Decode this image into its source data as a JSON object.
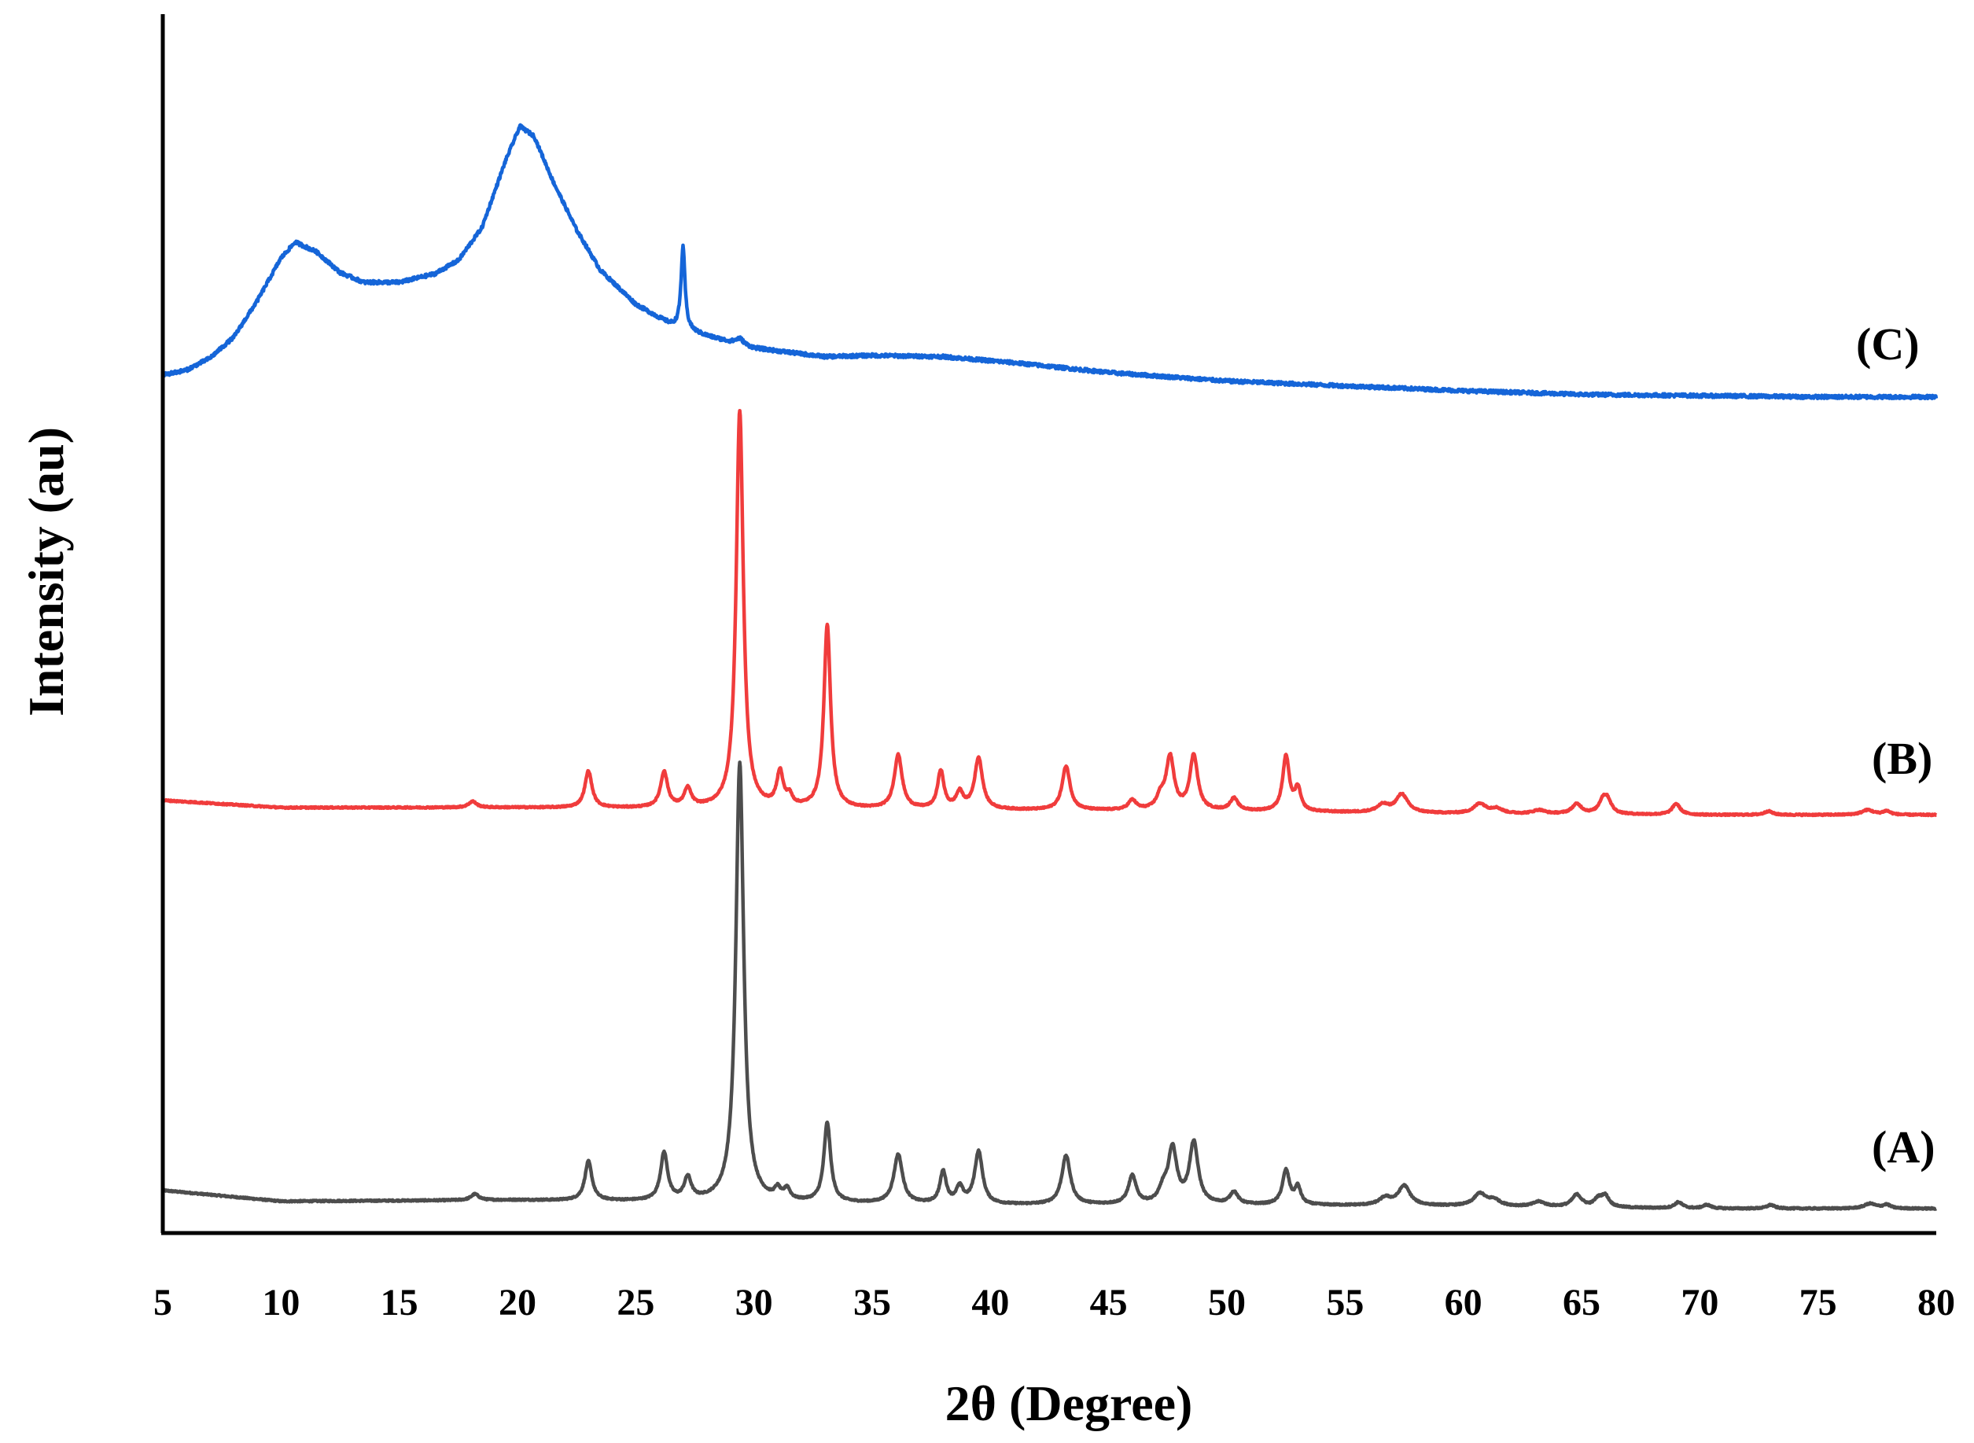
{
  "chart_data": {
    "type": "line",
    "title": "",
    "xlabel": "2θ (Degree)",
    "ylabel": "Intensity (au)",
    "xlim": [
      5,
      80
    ],
    "x_ticks": [
      5,
      10,
      15,
      20,
      25,
      30,
      35,
      40,
      45,
      50,
      55,
      60,
      65,
      70,
      75,
      80
    ],
    "y_unit_note": "arbitrary units, curves vertically offset for clarity",
    "ylim": [
      0,
      100
    ],
    "grid": false,
    "legend": "none",
    "series": [
      {
        "name": "(A)",
        "color": "#4d4d4d",
        "baseline": [
          [
            5,
            3.5
          ],
          [
            10,
            2.6
          ],
          [
            20,
            2.7
          ],
          [
            30,
            2.5
          ],
          [
            40,
            2.3
          ],
          [
            50,
            2.3
          ],
          [
            60,
            2.2
          ],
          [
            70,
            2.0
          ],
          [
            80,
            2.0
          ]
        ],
        "peaks": [
          [
            18.2,
            0.5,
            0.2
          ],
          [
            23.0,
            3.2,
            0.18
          ],
          [
            26.2,
            3.9,
            0.18
          ],
          [
            27.2,
            1.8,
            0.18
          ],
          [
            29.4,
            36.0,
            0.2
          ],
          [
            31.0,
            0.8,
            0.15
          ],
          [
            31.4,
            0.9,
            0.15
          ],
          [
            33.1,
            6.5,
            0.17
          ],
          [
            36.1,
            4.0,
            0.22
          ],
          [
            38.0,
            2.6,
            0.16
          ],
          [
            38.7,
            1.3,
            0.18
          ],
          [
            39.5,
            4.3,
            0.2
          ],
          [
            43.2,
            4.0,
            0.22
          ],
          [
            46.0,
            2.3,
            0.2
          ],
          [
            47.3,
            1.0,
            0.2
          ],
          [
            47.7,
            4.5,
            0.22
          ],
          [
            48.6,
            5.0,
            0.22
          ],
          [
            50.3,
            1.0,
            0.2
          ],
          [
            52.5,
            2.8,
            0.18
          ],
          [
            53.0,
            1.4,
            0.15
          ],
          [
            56.7,
            0.6,
            0.3
          ],
          [
            57.5,
            1.6,
            0.3
          ],
          [
            60.7,
            1.0,
            0.3
          ],
          [
            61.3,
            0.5,
            0.3
          ],
          [
            63.2,
            0.4,
            0.3
          ],
          [
            64.8,
            1.0,
            0.25
          ],
          [
            65.7,
            0.6,
            0.2
          ],
          [
            66.0,
            0.9,
            0.2
          ],
          [
            69.1,
            0.5,
            0.2
          ],
          [
            70.3,
            0.3,
            0.2
          ],
          [
            73.0,
            0.3,
            0.2
          ],
          [
            77.2,
            0.4,
            0.3
          ],
          [
            77.9,
            0.3,
            0.2
          ]
        ]
      },
      {
        "name": "(B)",
        "color": "#f03c3c",
        "baseline": [
          [
            5,
            35.5
          ],
          [
            10,
            34.9
          ],
          [
            20,
            34.9
          ],
          [
            30,
            34.8
          ],
          [
            40,
            34.7
          ],
          [
            50,
            34.6
          ],
          [
            60,
            34.4
          ],
          [
            70,
            34.3
          ],
          [
            80,
            34.3
          ]
        ],
        "peaks": [
          [
            18.1,
            0.5,
            0.2
          ],
          [
            23.0,
            3.0,
            0.18
          ],
          [
            26.2,
            2.9,
            0.18
          ],
          [
            27.2,
            1.5,
            0.18
          ],
          [
            29.4,
            32.6,
            0.18
          ],
          [
            31.1,
            2.8,
            0.16
          ],
          [
            31.5,
            0.8,
            0.15
          ],
          [
            33.1,
            15.0,
            0.17
          ],
          [
            36.1,
            4.4,
            0.2
          ],
          [
            37.9,
            3.1,
            0.16
          ],
          [
            38.7,
            1.3,
            0.18
          ],
          [
            39.5,
            4.2,
            0.2
          ],
          [
            43.2,
            3.6,
            0.2
          ],
          [
            46.0,
            0.8,
            0.2
          ],
          [
            47.2,
            1.0,
            0.2
          ],
          [
            47.6,
            4.3,
            0.2
          ],
          [
            48.6,
            4.5,
            0.2
          ],
          [
            50.3,
            1.0,
            0.2
          ],
          [
            52.5,
            4.5,
            0.17
          ],
          [
            53.0,
            1.8,
            0.15
          ],
          [
            56.6,
            0.6,
            0.3
          ],
          [
            57.4,
            1.5,
            0.3
          ],
          [
            60.7,
            0.8,
            0.3
          ],
          [
            61.4,
            0.4,
            0.3
          ],
          [
            63.2,
            0.3,
            0.3
          ],
          [
            64.8,
            0.8,
            0.25
          ],
          [
            65.9,
            1.0,
            0.2
          ],
          [
            66.1,
            1.0,
            0.2
          ],
          [
            69.0,
            0.9,
            0.2
          ],
          [
            72.9,
            0.3,
            0.2
          ],
          [
            77.1,
            0.4,
            0.3
          ],
          [
            77.9,
            0.3,
            0.2
          ]
        ]
      },
      {
        "name": "(C)",
        "color": "#1565d8",
        "baseline": [
          [
            5,
            70.4
          ],
          [
            6,
            70.8
          ],
          [
            7,
            71.8
          ],
          [
            8,
            73.5
          ],
          [
            9,
            76.5
          ],
          [
            10,
            80.0
          ],
          [
            10.6,
            81.3
          ],
          [
            11.5,
            80.5
          ],
          [
            12.5,
            78.8
          ],
          [
            13.5,
            78.0
          ],
          [
            15,
            78.0
          ],
          [
            16.5,
            78.7
          ],
          [
            17.5,
            79.8
          ],
          [
            18.5,
            82.5
          ],
          [
            19.5,
            88.0
          ],
          [
            20.1,
            90.8
          ],
          [
            20.7,
            90.0
          ],
          [
            21.5,
            86.3
          ],
          [
            22.5,
            82.3
          ],
          [
            23.5,
            79.0
          ],
          [
            25,
            76.2
          ],
          [
            26.5,
            74.5
          ],
          [
            28,
            73.6
          ],
          [
            30,
            72.6
          ],
          [
            33,
            71.9
          ],
          [
            35,
            72.0
          ],
          [
            38,
            71.9
          ],
          [
            41,
            71.4
          ],
          [
            45,
            70.6
          ],
          [
            50,
            69.9
          ],
          [
            55,
            69.5
          ],
          [
            60,
            69.1
          ],
          [
            65,
            68.8
          ],
          [
            70,
            68.7
          ],
          [
            75,
            68.6
          ],
          [
            80,
            68.6
          ]
        ],
        "peaks": [
          [
            27.0,
            6.7,
            0.1
          ],
          [
            29.4,
            0.5,
            0.2
          ]
        ]
      }
    ],
    "annotations": [
      "(A)",
      "(B)",
      "(C)"
    ]
  }
}
